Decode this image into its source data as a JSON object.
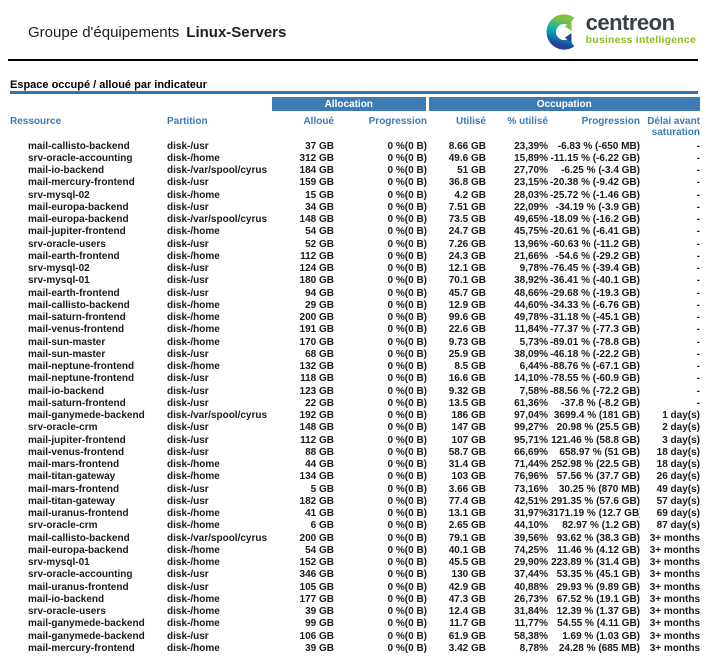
{
  "header": {
    "title_prefix": "Groupe d'équipements",
    "title_group": "Linux-Servers",
    "logo": {
      "brand": "centreon",
      "tagline": "business intelligence"
    }
  },
  "section": {
    "title": "Espace occupé / alloué par indicateur"
  },
  "table": {
    "group_headers": {
      "allocation": "Allocation",
      "occupation": "Occupation"
    },
    "columns": {
      "resource": "Ressource",
      "partition": "Partition",
      "allocated": "Alloué",
      "alloc_progression": "Progression",
      "used": "Utilisé",
      "used_pct": "% utilisé",
      "progression": "Progression",
      "saturation_delay": "Délai avant saturation"
    },
    "column_keys": [
      "resource",
      "partition",
      "allocated",
      "alloc-progression",
      "used",
      "used-pct",
      "progression",
      "saturation-delay"
    ],
    "rows": [
      [
        "mail-callisto-backend",
        "disk-/usr",
        "37 GB",
        "0 %(0 B)",
        "8.66 GB",
        "23,39%",
        "-6.83 % (-650 MB)",
        "-"
      ],
      [
        "srv-oracle-accounting",
        "disk-/home",
        "312 GB",
        "0 %(0 B)",
        "49.6 GB",
        "15,89%",
        "-11.15 % (-6.22 GB)",
        "-"
      ],
      [
        "mail-io-backend",
        "disk-/var/spool/cyrus",
        "184 GB",
        "0 %(0 B)",
        "51 GB",
        "27,70%",
        "-6.25 % (-3.4 GB)",
        "-"
      ],
      [
        "mail-mercury-frontend",
        "disk-/usr",
        "159 GB",
        "0 %(0 B)",
        "36.8 GB",
        "23,15%",
        "-20.38 % (-9.42 GB)",
        "-"
      ],
      [
        "srv-mysql-02",
        "disk-/home",
        "15 GB",
        "0 %(0 B)",
        "4.2 GB",
        "28,03%",
        "-25.72 % (-1.46 GB)",
        "-"
      ],
      [
        "mail-europa-backend",
        "disk-/usr",
        "34 GB",
        "0 %(0 B)",
        "7.51 GB",
        "22,09%",
        "-34.19 % (-3.9 GB)",
        "-"
      ],
      [
        "mail-europa-backend",
        "disk-/var/spool/cyrus",
        "148 GB",
        "0 %(0 B)",
        "73.5 GB",
        "49,65%",
        "-18.09 % (-16.2 GB)",
        "-"
      ],
      [
        "mail-jupiter-frontend",
        "disk-/home",
        "54 GB",
        "0 %(0 B)",
        "24.7 GB",
        "45,75%",
        "-20.61 % (-6.41 GB)",
        "-"
      ],
      [
        "srv-oracle-users",
        "disk-/usr",
        "52 GB",
        "0 %(0 B)",
        "7.26 GB",
        "13,96%",
        "-60.63 % (-11.2 GB)",
        "-"
      ],
      [
        "mail-earth-frontend",
        "disk-/home",
        "112 GB",
        "0 %(0 B)",
        "24.3 GB",
        "21,66%",
        "-54.6 % (-29.2 GB)",
        "-"
      ],
      [
        "srv-mysql-02",
        "disk-/usr",
        "124 GB",
        "0 %(0 B)",
        "12.1 GB",
        "9,78%",
        "-76.45 % (-39.4 GB)",
        "-"
      ],
      [
        "srv-mysql-01",
        "disk-/usr",
        "180 GB",
        "0 %(0 B)",
        "70.1 GB",
        "38,92%",
        "-36.41 % (-40.1 GB)",
        "-"
      ],
      [
        "mail-earth-frontend",
        "disk-/usr",
        "94 GB",
        "0 %(0 B)",
        "45.7 GB",
        "48,66%",
        "-29.68 % (-19.3 GB)",
        "-"
      ],
      [
        "mail-callisto-backend",
        "disk-/home",
        "29 GB",
        "0 %(0 B)",
        "12.9 GB",
        "44,60%",
        "-34.33 % (-6.76 GB)",
        "-"
      ],
      [
        "mail-saturn-frontend",
        "disk-/home",
        "200 GB",
        "0 %(0 B)",
        "99.6 GB",
        "49,78%",
        "-31.18 % (-45.1 GB)",
        "-"
      ],
      [
        "mail-venus-frontend",
        "disk-/home",
        "191 GB",
        "0 %(0 B)",
        "22.6 GB",
        "11,84%",
        "-77.37 % (-77.3 GB)",
        "-"
      ],
      [
        "mail-sun-master",
        "disk-/home",
        "170 GB",
        "0 %(0 B)",
        "9.73 GB",
        "5,73%",
        "-89.01 % (-78.8 GB)",
        "-"
      ],
      [
        "mail-sun-master",
        "disk-/usr",
        "68 GB",
        "0 %(0 B)",
        "25.9 GB",
        "38,09%",
        "-46.18 % (-22.2 GB)",
        "-"
      ],
      [
        "mail-neptune-frontend",
        "disk-/home",
        "132 GB",
        "0 %(0 B)",
        "8.5 GB",
        "6,44%",
        "-88.76 % (-67.1 GB)",
        "-"
      ],
      [
        "mail-neptune-frontend",
        "disk-/usr",
        "118 GB",
        "0 %(0 B)",
        "16.6 GB",
        "14,10%",
        "-78.55 % (-60.9 GB)",
        "-"
      ],
      [
        "mail-io-backend",
        "disk-/usr",
        "123 GB",
        "0 %(0 B)",
        "9.32 GB",
        "7,58%",
        "-88.56 % (-72.2 GB)",
        "-"
      ],
      [
        "mail-saturn-frontend",
        "disk-/usr",
        "22 GB",
        "0 %(0 B)",
        "13.5 GB",
        "61,36%",
        "-37.8 % (-8.2 GB)",
        "-"
      ],
      [
        "mail-ganymede-backend",
        "disk-/var/spool/cyrus",
        "192 GB",
        "0 %(0 B)",
        "186 GB",
        "97,04%",
        "3699.4 % (181 GB)",
        "1 day(s)"
      ],
      [
        "srv-oracle-crm",
        "disk-/usr",
        "148 GB",
        "0 %(0 B)",
        "147 GB",
        "99,27%",
        "20.98 % (25.5 GB)",
        "2 day(s)"
      ],
      [
        "mail-jupiter-frontend",
        "disk-/usr",
        "112 GB",
        "0 %(0 B)",
        "107 GB",
        "95,71%",
        "121.46 % (58.8 GB)",
        "3 day(s)"
      ],
      [
        "mail-venus-frontend",
        "disk-/usr",
        "88 GB",
        "0 %(0 B)",
        "58.7 GB",
        "66,69%",
        "658.97 % (51 GB)",
        "18 day(s)"
      ],
      [
        "mail-mars-frontend",
        "disk-/home",
        "44 GB",
        "0 %(0 B)",
        "31.4 GB",
        "71,44%",
        "252.98 % (22.5 GB)",
        "18 day(s)"
      ],
      [
        "mail-titan-gateway",
        "disk-/home",
        "134 GB",
        "0 %(0 B)",
        "103 GB",
        "76,96%",
        "57.56 % (37.7 GB)",
        "26 day(s)"
      ],
      [
        "mail-mars-frontend",
        "disk-/usr",
        "5 GB",
        "0 %(0 B)",
        "3.66 GB",
        "73,16%",
        "30.25 % (870 MB)",
        "49 day(s)"
      ],
      [
        "mail-titan-gateway",
        "disk-/usr",
        "182 GB",
        "0 %(0 B)",
        "77.4 GB",
        "42,51%",
        "291.35 % (57.6 GB)",
        "57 day(s)"
      ],
      [
        "mail-uranus-frontend",
        "disk-/home",
        "41 GB",
        "0 %(0 B)",
        "13.1 GB",
        "31,97%",
        "3171.19 % (12.7 GB)",
        "69 day(s)"
      ],
      [
        "srv-oracle-crm",
        "disk-/home",
        "6 GB",
        "0 %(0 B)",
        "2.65 GB",
        "44,10%",
        "82.97 % (1.2 GB)",
        "87 day(s)"
      ],
      [
        "mail-callisto-backend",
        "disk-/var/spool/cyrus",
        "200 GB",
        "0 %(0 B)",
        "79.1 GB",
        "39,56%",
        "93.62 % (38.3 GB)",
        "3+ months"
      ],
      [
        "mail-europa-backend",
        "disk-/home",
        "54 GB",
        "0 %(0 B)",
        "40.1 GB",
        "74,25%",
        "11.46 % (4.12 GB)",
        "3+ months"
      ],
      [
        "srv-mysql-01",
        "disk-/home",
        "152 GB",
        "0 %(0 B)",
        "45.5 GB",
        "29,90%",
        "223.89 % (31.4 GB)",
        "3+ months"
      ],
      [
        "srv-oracle-accounting",
        "disk-/usr",
        "346 GB",
        "0 %(0 B)",
        "130 GB",
        "37,44%",
        "53.35 % (45.1 GB)",
        "3+ months"
      ],
      [
        "mail-uranus-frontend",
        "disk-/usr",
        "105 GB",
        "0 %(0 B)",
        "42.9 GB",
        "40,88%",
        "29.93 % (9.89 GB)",
        "3+ months"
      ],
      [
        "mail-io-backend",
        "disk-/home",
        "177 GB",
        "0 %(0 B)",
        "47.3 GB",
        "26,73%",
        "67.52 % (19.1 GB)",
        "3+ months"
      ],
      [
        "srv-oracle-users",
        "disk-/home",
        "39 GB",
        "0 %(0 B)",
        "12.4 GB",
        "31,84%",
        "12.39 % (1.37 GB)",
        "3+ months"
      ],
      [
        "mail-ganymede-backend",
        "disk-/home",
        "99 GB",
        "0 %(0 B)",
        "11.7 GB",
        "11,77%",
        "54.55 % (4.11 GB)",
        "3+ months"
      ],
      [
        "mail-ganymede-backend",
        "disk-/usr",
        "106 GB",
        "0 %(0 B)",
        "61.9 GB",
        "58,38%",
        "1.69 % (1.03 GB)",
        "3+ months"
      ],
      [
        "mail-mercury-frontend",
        "disk-/home",
        "39 GB",
        "0 %(0 B)",
        "3.42 GB",
        "8,78%",
        "24.28 % (685 MB)",
        "3+ months"
      ]
    ]
  },
  "colors": {
    "band_blue": "#3d7cb3",
    "header_text_blue": "#3d7cb3",
    "section_rule_blue": "#2e74b7",
    "tagline_green": "#8fbe21",
    "logo_teal": "#00b0b2",
    "logo_green": "#7dc242",
    "logo_navy": "#23409a",
    "brand_dark": "#3a4047"
  }
}
